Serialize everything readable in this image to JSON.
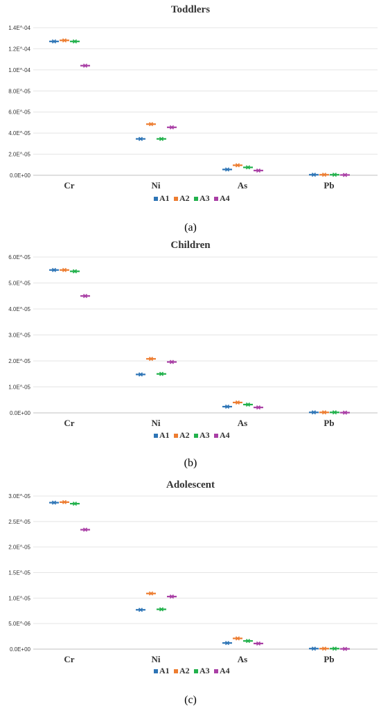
{
  "colors": {
    "A1": "#2e75b6",
    "A2": "#ed7d31",
    "A3": "#22b14c",
    "A4": "#a93fa5"
  },
  "chart_data": [
    {
      "type": "scatter",
      "title": "Toddlers",
      "caption": "(a)",
      "categories": [
        "Cr",
        "Ni",
        "As",
        "Pb"
      ],
      "ylim": [
        0,
        0.00014
      ],
      "yticks": [
        "0.0E+00",
        "2.0E^-05",
        "4.0E^-05",
        "6.0E^-05",
        "8.0E^-05",
        "1.0E^-04",
        "1.2E^-04",
        "1.4E^-04"
      ],
      "legend": "bottom",
      "grid": true,
      "series": [
        {
          "name": "A1",
          "values": [
            0.000127,
            3.45e-05,
            5.5e-06,
            5e-07
          ]
        },
        {
          "name": "A2",
          "values": [
            0.000128,
            4.85e-05,
            9.5e-06,
            5e-07
          ]
        },
        {
          "name": "A3",
          "values": [
            0.000127,
            3.45e-05,
            7.5e-06,
            5e-07
          ]
        },
        {
          "name": "A4",
          "values": [
            0.000104,
            4.55e-05,
            4.5e-06,
            3e-07
          ]
        }
      ]
    },
    {
      "type": "scatter",
      "title": "Children",
      "caption": "(b)",
      "categories": [
        "Cr",
        "Ni",
        "As",
        "Pb"
      ],
      "ylim": [
        0,
        6e-05
      ],
      "yticks": [
        "0.0E+00",
        "1.0E^-05",
        "2.0E^-05",
        "3.0E^-05",
        "4.0E^-05",
        "5.0E^-05",
        "6.0E^-05"
      ],
      "legend": "bottom",
      "grid": true,
      "series": [
        {
          "name": "A1",
          "values": [
            5.5e-05,
            1.48e-05,
            2.4e-06,
            2e-07
          ]
        },
        {
          "name": "A2",
          "values": [
            5.5e-05,
            2.08e-05,
            4e-06,
            2e-07
          ]
        },
        {
          "name": "A3",
          "values": [
            5.45e-05,
            1.5e-05,
            3.2e-06,
            2e-07
          ]
        },
        {
          "name": "A4",
          "values": [
            4.5e-05,
            1.96e-05,
            2.1e-06,
            1e-07
          ]
        }
      ]
    },
    {
      "type": "scatter",
      "title": "Adolescent",
      "caption": "(c)",
      "categories": [
        "Cr",
        "Ni",
        "As",
        "Pb"
      ],
      "ylim": [
        0,
        3e-05
      ],
      "yticks": [
        "0.0E+00",
        "5.0E^-06",
        "1.0E^-05",
        "1.5E^-05",
        "2.0E^-05",
        "2.5E^-05",
        "3.0E^-05"
      ],
      "legend": "bottom",
      "grid": true,
      "series": [
        {
          "name": "A1",
          "values": [
            2.87e-05,
            7.7e-06,
            1.2e-06,
            1e-07
          ]
        },
        {
          "name": "A2",
          "values": [
            2.88e-05,
            1.09e-05,
            2.1e-06,
            1e-07
          ]
        },
        {
          "name": "A3",
          "values": [
            2.85e-05,
            7.8e-06,
            1.6e-06,
            1e-07
          ]
        },
        {
          "name": "A4",
          "values": [
            2.34e-05,
            1.03e-05,
            1.1e-06,
            5e-08
          ]
        }
      ]
    }
  ]
}
